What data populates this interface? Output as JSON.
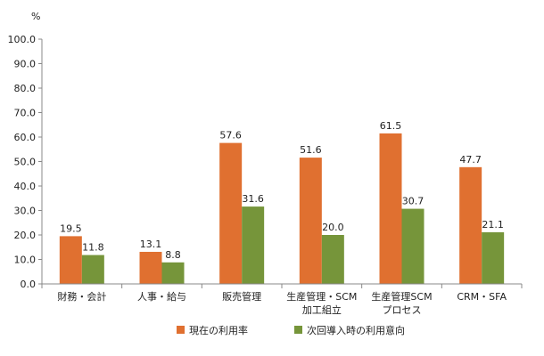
{
  "chart_data": {
    "type": "bar",
    "unit_label": "%",
    "categories": [
      [
        "財務・会計"
      ],
      [
        "人事・給与"
      ],
      [
        "販売管理"
      ],
      [
        "生産管理・SCM",
        "加工組立"
      ],
      [
        "生産管理SCM",
        "プロセス"
      ],
      [
        "CRM・SFA"
      ]
    ],
    "series": [
      {
        "name": "現在の利用率",
        "color": "#E07030",
        "values": [
          19.5,
          13.1,
          57.6,
          51.6,
          61.5,
          47.7
        ]
      },
      {
        "name": "次回導入時の利用意向",
        "color": "#76953A",
        "values": [
          11.8,
          8.8,
          31.6,
          20.0,
          30.7,
          21.1
        ]
      }
    ],
    "ylim": [
      0,
      100
    ],
    "yticks": [
      0,
      10,
      20,
      30,
      40,
      50,
      60,
      70,
      80,
      90,
      100
    ],
    "grid": false,
    "legend": "bottom"
  }
}
